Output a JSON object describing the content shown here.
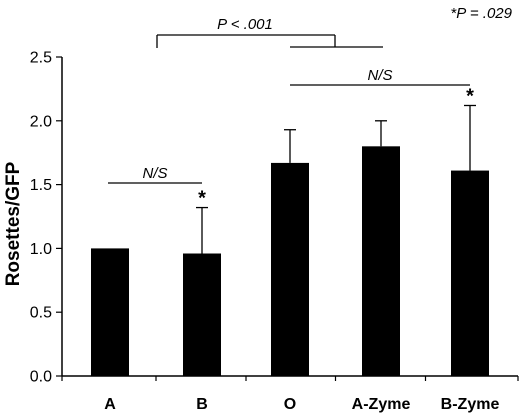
{
  "chart_data": {
    "type": "bar",
    "categories": [
      "A",
      "B",
      "O",
      "A-Zyme",
      "B-Zyme"
    ],
    "values": [
      1.0,
      0.96,
      1.67,
      1.8,
      1.61
    ],
    "error_upper": [
      1.0,
      1.32,
      1.93,
      2.0,
      2.12
    ],
    "significance_stars": [
      "",
      "*",
      "",
      "",
      "*"
    ],
    "ylabel": "Rosettes/GFP",
    "xlabel": "",
    "title": "",
    "ylim": [
      0,
      2.5
    ],
    "yticks": [
      "0.0",
      "0.5",
      "1.0",
      "1.5",
      "2.0",
      "2.5"
    ],
    "bar_color": "#000000",
    "grid": false,
    "annotations": {
      "top_right": "*P = .029",
      "comparison_p": "P < .001",
      "ns_left": "N/S",
      "ns_right": "N/S"
    }
  }
}
